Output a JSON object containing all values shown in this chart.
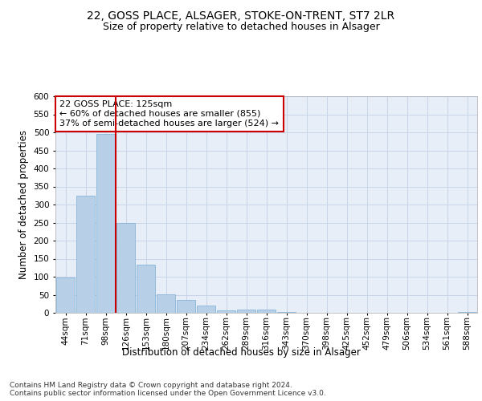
{
  "title_line1": "22, GOSS PLACE, ALSAGER, STOKE-ON-TRENT, ST7 2LR",
  "title_line2": "Size of property relative to detached houses in Alsager",
  "xlabel": "Distribution of detached houses by size in Alsager",
  "ylabel": "Number of detached properties",
  "categories": [
    "44sqm",
    "71sqm",
    "98sqm",
    "126sqm",
    "153sqm",
    "180sqm",
    "207sqm",
    "234sqm",
    "262sqm",
    "289sqm",
    "316sqm",
    "343sqm",
    "370sqm",
    "398sqm",
    "425sqm",
    "452sqm",
    "479sqm",
    "506sqm",
    "534sqm",
    "561sqm",
    "588sqm"
  ],
  "values": [
    98,
    325,
    495,
    250,
    133,
    52,
    36,
    21,
    6,
    8,
    9,
    3,
    0,
    0,
    0,
    0,
    0,
    0,
    0,
    0,
    3
  ],
  "bar_color": "#b8cfe8",
  "bar_edge_color": "#7aadd4",
  "vline_color": "#cc0000",
  "annotation_text": "22 GOSS PLACE: 125sqm\n← 60% of detached houses are smaller (855)\n37% of semi-detached houses are larger (524) →",
  "annotation_box_color": "#ffffff",
  "annotation_box_edge_color": "#cc0000",
  "ylim": [
    0,
    600
  ],
  "yticks": [
    0,
    50,
    100,
    150,
    200,
    250,
    300,
    350,
    400,
    450,
    500,
    550,
    600
  ],
  "grid_color": "#c8d4e8",
  "background_color": "#e8eef8",
  "footer_text": "Contains HM Land Registry data © Crown copyright and database right 2024.\nContains public sector information licensed under the Open Government Licence v3.0.",
  "title_fontsize": 10,
  "subtitle_fontsize": 9,
  "axis_label_fontsize": 8.5,
  "tick_fontsize": 7.5,
  "annotation_fontsize": 8,
  "footer_fontsize": 6.5
}
